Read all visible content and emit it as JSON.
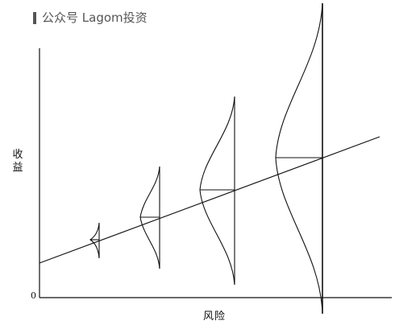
{
  "watermark": {
    "text": "公众号 Lagom投资"
  },
  "axes": {
    "y_label": "收益",
    "x_label": "风险",
    "origin_label": "0"
  },
  "distributions": [
    {
      "name": "distribution-1"
    },
    {
      "name": "distribution-2"
    },
    {
      "name": "distribution-3"
    },
    {
      "name": "distribution-4"
    }
  ]
}
